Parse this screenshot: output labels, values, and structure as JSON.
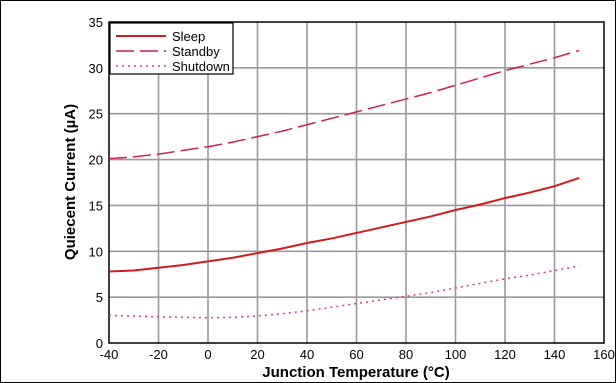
{
  "chart_data": {
    "type": "line",
    "title": "",
    "xlabel": "Junction Temperature (°C)",
    "ylabel": "Quiecent Current (µA)",
    "xlim": [
      -40,
      160
    ],
    "ylim": [
      0,
      35
    ],
    "xticks": [
      -40,
      -20,
      0,
      20,
      40,
      60,
      80,
      100,
      120,
      140,
      160
    ],
    "yticks": [
      0,
      5,
      10,
      15,
      20,
      25,
      30,
      35
    ],
    "grid": true,
    "legend_position": "top-left",
    "series": [
      {
        "name": "Sleep",
        "style": "solid",
        "color": "#d01c1c",
        "x": [
          -40,
          -30,
          -20,
          -10,
          0,
          10,
          20,
          30,
          40,
          50,
          60,
          70,
          80,
          90,
          100,
          110,
          120,
          130,
          140,
          150
        ],
        "y": [
          7.8,
          7.9,
          8.2,
          8.5,
          8.9,
          9.3,
          9.8,
          10.3,
          10.9,
          11.4,
          12.0,
          12.6,
          13.2,
          13.8,
          14.5,
          15.1,
          15.8,
          16.4,
          17.1,
          18.0
        ]
      },
      {
        "name": "Standby",
        "style": "dashed",
        "color": "#cc1f5e",
        "x": [
          -40,
          -30,
          -20,
          -10,
          0,
          10,
          20,
          30,
          40,
          50,
          60,
          70,
          80,
          90,
          100,
          110,
          120,
          130,
          140,
          150
        ],
        "y": [
          20.1,
          20.3,
          20.6,
          21.0,
          21.4,
          21.9,
          22.5,
          23.1,
          23.8,
          24.5,
          25.2,
          25.9,
          26.6,
          27.3,
          28.1,
          28.9,
          29.7,
          30.4,
          31.1,
          31.9
        ]
      },
      {
        "name": "Shutdown",
        "style": "dotted",
        "color": "#d63a8a",
        "x": [
          -40,
          -30,
          -20,
          -10,
          0,
          10,
          20,
          30,
          40,
          50,
          60,
          70,
          80,
          90,
          100,
          110,
          120,
          130,
          140,
          150
        ],
        "y": [
          3.0,
          2.95,
          2.85,
          2.8,
          2.75,
          2.8,
          2.95,
          3.2,
          3.5,
          3.9,
          4.3,
          4.7,
          5.1,
          5.5,
          6.0,
          6.5,
          7.0,
          7.4,
          7.9,
          8.4
        ]
      }
    ]
  }
}
